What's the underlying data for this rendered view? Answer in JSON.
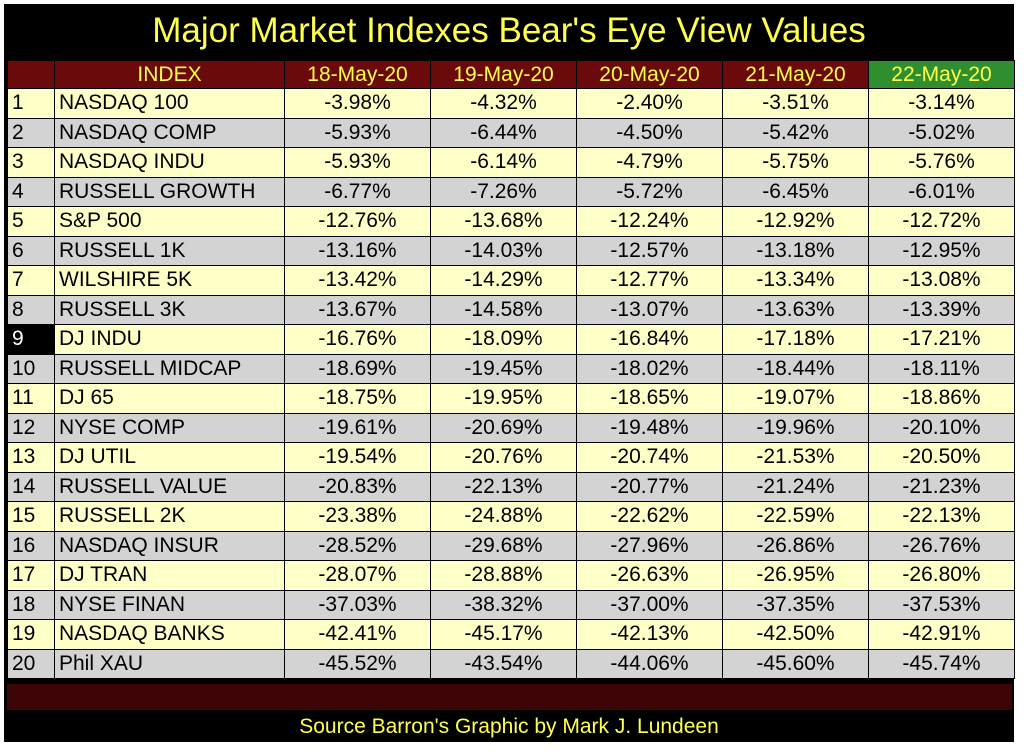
{
  "chart_data": {
    "type": "table",
    "title": "Major Market Indexes Bear's Eye View Values",
    "columns": [
      "INDEX",
      "18-May-20",
      "19-May-20",
      "20-May-20",
      "21-May-20",
      "22-May-20"
    ],
    "rows": [
      {
        "rank": "1",
        "name": "NASDAQ 100",
        "values": [
          "-3.98%",
          "-4.32%",
          "-2.40%",
          "-3.51%",
          "-3.14%"
        ]
      },
      {
        "rank": "2",
        "name": "NASDAQ COMP",
        "values": [
          "-5.93%",
          "-6.44%",
          "-4.50%",
          "-5.42%",
          "-5.02%"
        ]
      },
      {
        "rank": "3",
        "name": "NASDAQ INDU",
        "values": [
          "-5.93%",
          "-6.14%",
          "-4.79%",
          "-5.75%",
          "-5.76%"
        ]
      },
      {
        "rank": "4",
        "name": "RUSSELL GROWTH",
        "values": [
          "-6.77%",
          "-7.26%",
          "-5.72%",
          "-6.45%",
          "-6.01%"
        ]
      },
      {
        "rank": "5",
        "name": "S&P 500",
        "values": [
          "-12.76%",
          "-13.68%",
          "-12.24%",
          "-12.92%",
          "-12.72%"
        ]
      },
      {
        "rank": "6",
        "name": "RUSSELL 1K",
        "values": [
          "-13.16%",
          "-14.03%",
          "-12.57%",
          "-13.18%",
          "-12.95%"
        ]
      },
      {
        "rank": "7",
        "name": "WILSHIRE 5K",
        "values": [
          "-13.42%",
          "-14.29%",
          "-12.77%",
          "-13.34%",
          "-13.08%"
        ]
      },
      {
        "rank": "8",
        "name": "RUSSELL 3K",
        "values": [
          "-13.67%",
          "-14.58%",
          "-13.07%",
          "-13.63%",
          "-13.39%"
        ]
      },
      {
        "rank": "9",
        "name": "DJ  INDU",
        "values": [
          "-16.76%",
          "-18.09%",
          "-16.84%",
          "-17.18%",
          "-17.21%"
        ]
      },
      {
        "rank": "10",
        "name": "RUSSELL MIDCAP",
        "values": [
          "-18.69%",
          "-19.45%",
          "-18.02%",
          "-18.44%",
          "-18.11%"
        ]
      },
      {
        "rank": "11",
        "name": "DJ  65",
        "values": [
          "-18.75%",
          "-19.95%",
          "-18.65%",
          "-19.07%",
          "-18.86%"
        ]
      },
      {
        "rank": "12",
        "name": "NYSE COMP",
        "values": [
          "-19.61%",
          "-20.69%",
          "-19.48%",
          "-19.96%",
          "-20.10%"
        ]
      },
      {
        "rank": "13",
        "name": "DJ  UTIL",
        "values": [
          "-19.54%",
          "-20.76%",
          "-20.74%",
          "-21.53%",
          "-20.50%"
        ]
      },
      {
        "rank": "14",
        "name": "RUSSELL VALUE",
        "values": [
          "-20.83%",
          "-22.13%",
          "-20.77%",
          "-21.24%",
          "-21.23%"
        ]
      },
      {
        "rank": "15",
        "name": "RUSSELL 2K",
        "values": [
          "-23.38%",
          "-24.88%",
          "-22.62%",
          "-22.59%",
          "-22.13%"
        ]
      },
      {
        "rank": "16",
        "name": "NASDAQ INSUR",
        "values": [
          "-28.52%",
          "-29.68%",
          "-27.96%",
          "-26.86%",
          "-26.76%"
        ]
      },
      {
        "rank": "17",
        "name": "DJ  TRAN",
        "values": [
          "-28.07%",
          "-28.88%",
          "-26.63%",
          "-26.95%",
          "-26.80%"
        ]
      },
      {
        "rank": "18",
        "name": "NYSE FINAN",
        "values": [
          "-37.03%",
          "-38.32%",
          "-37.00%",
          "-37.35%",
          "-37.53%"
        ]
      },
      {
        "rank": "19",
        "name": "NASDAQ BANKS",
        "values": [
          "-42.41%",
          "-45.17%",
          "-42.13%",
          "-42.50%",
          "-42.91%"
        ]
      },
      {
        "rank": "20",
        "name": "Phil XAU",
        "values": [
          "-45.52%",
          "-43.54%",
          "-44.06%",
          "-45.60%",
          "-45.74%"
        ]
      }
    ],
    "highlighted_column": "22-May-20",
    "highlighted_rank": "9"
  },
  "footer": {
    "source": "Source Barron's   Graphic by Mark J. Lundeen"
  },
  "colors": {
    "background": "#000000",
    "title_text": "#ffff4d",
    "header_bg": "#6b0a0a",
    "highlight_header_bg": "#2f8f2f",
    "row_odd": "#ffffc8",
    "row_even": "#d3d3d3",
    "footer_bar": "#3d0505"
  }
}
